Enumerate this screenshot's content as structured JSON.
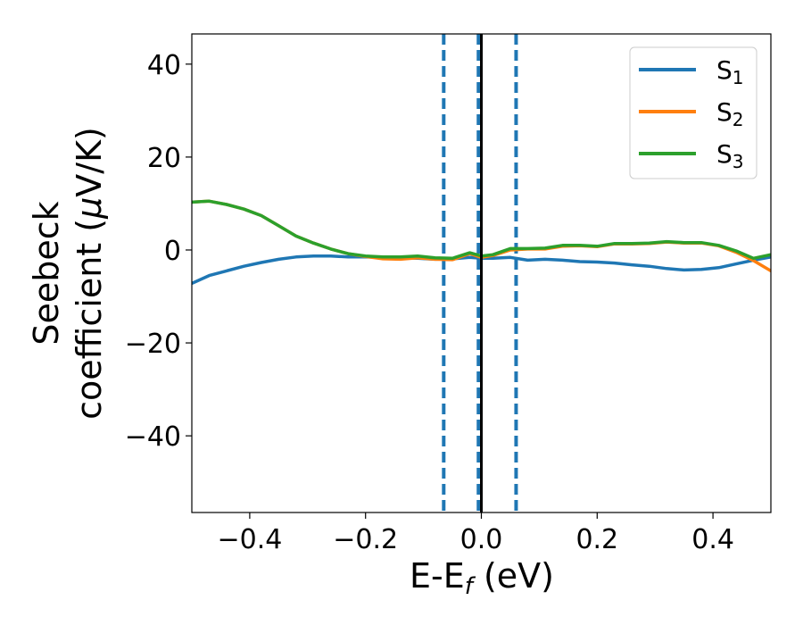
{
  "chart_data": {
    "type": "line",
    "xlabel": "E-E",
    "xlabel_sub": "f",
    "xlabel_unit": " (eV)",
    "ylabel_line1": "Seebeck",
    "ylabel_line2": "coefficient  (",
    "ylabel_mu": "μ",
    "ylabel_unit": "V/K)",
    "xlim": [
      -0.5,
      0.5
    ],
    "ylim": [
      -56.5,
      46.5
    ],
    "xticks": [
      -0.4,
      -0.2,
      0.0,
      0.2,
      0.4
    ],
    "xtick_labels": [
      "−0.4",
      "−0.2",
      "0.0",
      "0.2",
      "0.4"
    ],
    "yticks": [
      -40,
      -20,
      0,
      20,
      40
    ],
    "ytick_labels": [
      "−40",
      "−20",
      "0",
      "20",
      "40"
    ],
    "grid": false,
    "legend_position": "top-right",
    "vlines": [
      {
        "x": -0.065,
        "style": "dashed",
        "color": "#1f77b4"
      },
      {
        "x": -0.005,
        "style": "dashed",
        "color": "#1f77b4"
      },
      {
        "x": 0.0,
        "style": "solid",
        "color": "#000000"
      },
      {
        "x": 0.06,
        "style": "dashed",
        "color": "#1f77b4"
      }
    ],
    "series": [
      {
        "name": "S",
        "name_sub": "1",
        "color": "#1f77b4",
        "x": [
          -0.5,
          -0.47,
          -0.44,
          -0.41,
          -0.38,
          -0.35,
          -0.32,
          -0.29,
          -0.26,
          -0.23,
          -0.2,
          -0.17,
          -0.14,
          -0.11,
          -0.08,
          -0.05,
          -0.02,
          0.0,
          0.02,
          0.05,
          0.08,
          0.11,
          0.14,
          0.17,
          0.2,
          0.23,
          0.26,
          0.29,
          0.32,
          0.35,
          0.38,
          0.41,
          0.44,
          0.47,
          0.5
        ],
        "y": [
          -7.2,
          -5.5,
          -4.5,
          -3.5,
          -2.7,
          -2.0,
          -1.5,
          -1.3,
          -1.3,
          -1.5,
          -1.5,
          -1.6,
          -1.7,
          -1.8,
          -2.0,
          -1.9,
          -1.6,
          -1.8,
          -1.8,
          -1.6,
          -2.2,
          -2.0,
          -2.2,
          -2.5,
          -2.6,
          -2.8,
          -3.2,
          -3.5,
          -4.0,
          -4.3,
          -4.2,
          -3.8,
          -3.0,
          -2.2,
          -1.5
        ]
      },
      {
        "name": "S",
        "name_sub": "2",
        "color": "#ff7f0e",
        "x": [
          -0.5,
          -0.47,
          -0.44,
          -0.41,
          -0.38,
          -0.35,
          -0.32,
          -0.29,
          -0.26,
          -0.23,
          -0.2,
          -0.17,
          -0.14,
          -0.11,
          -0.08,
          -0.05,
          -0.02,
          0.0,
          0.02,
          0.05,
          0.08,
          0.11,
          0.14,
          0.17,
          0.2,
          0.23,
          0.26,
          0.29,
          0.32,
          0.35,
          0.38,
          0.41,
          0.44,
          0.47,
          0.5
        ],
        "y": [
          10.3,
          10.5,
          9.8,
          8.8,
          7.4,
          5.2,
          3.0,
          1.5,
          0.2,
          -0.8,
          -1.4,
          -1.9,
          -2.0,
          -1.7,
          -2.0,
          -2.1,
          -0.8,
          -1.6,
          -1.2,
          0.0,
          0.2,
          0.2,
          0.8,
          0.9,
          0.7,
          1.3,
          1.3,
          1.4,
          1.7,
          1.5,
          1.5,
          0.9,
          -0.5,
          -2.3,
          -4.5
        ]
      },
      {
        "name": "S",
        "name_sub": "3",
        "color": "#2ca02c",
        "x": [
          -0.5,
          -0.47,
          -0.44,
          -0.41,
          -0.38,
          -0.35,
          -0.32,
          -0.29,
          -0.26,
          -0.23,
          -0.2,
          -0.17,
          -0.14,
          -0.11,
          -0.08,
          -0.05,
          -0.02,
          0.0,
          0.02,
          0.05,
          0.08,
          0.11,
          0.14,
          0.17,
          0.2,
          0.23,
          0.26,
          0.29,
          0.32,
          0.35,
          0.38,
          0.41,
          0.44,
          0.47,
          0.5
        ],
        "y": [
          10.3,
          10.5,
          9.8,
          8.8,
          7.4,
          5.2,
          3.0,
          1.5,
          0.2,
          -0.8,
          -1.3,
          -1.5,
          -1.5,
          -1.3,
          -1.7,
          -1.8,
          -0.6,
          -1.3,
          -1.0,
          0.3,
          0.3,
          0.4,
          1.0,
          1.0,
          0.8,
          1.4,
          1.4,
          1.5,
          1.8,
          1.6,
          1.6,
          1.0,
          -0.2,
          -1.8,
          -1.0
        ]
      }
    ]
  }
}
